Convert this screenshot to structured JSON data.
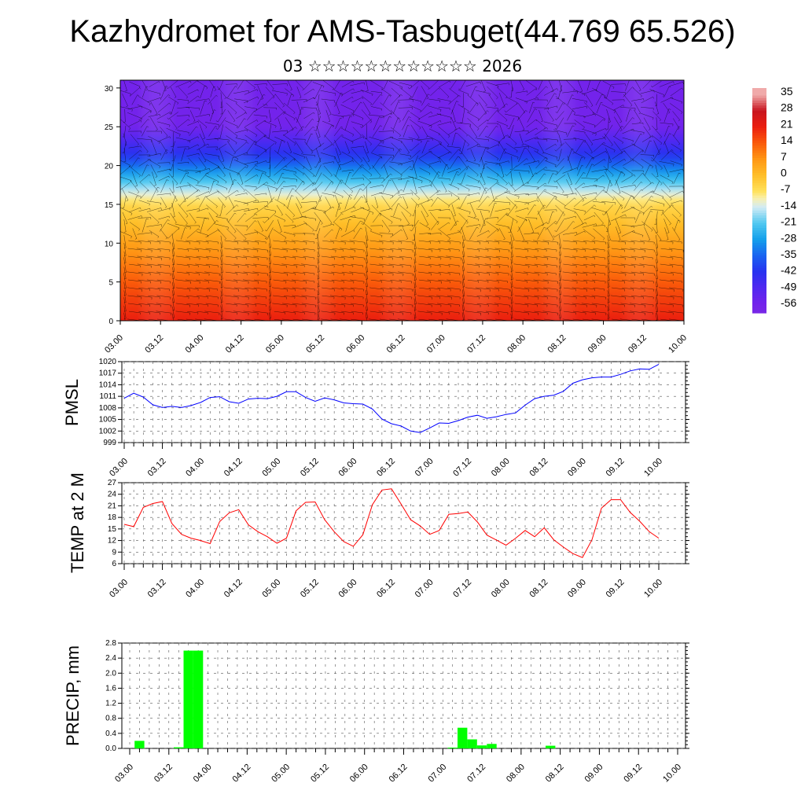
{
  "header": {
    "title": "Kazhydromet for AMS-Tasbuget(44.769 65.526)",
    "subtitle": "03 ☆☆☆☆☆☆☆☆☆☆☆☆ 2026"
  },
  "colorbar": {
    "labels": [
      "35",
      "28",
      "21",
      "14",
      "7",
      "0",
      "-7",
      "-14",
      "-21",
      "-28",
      "-35",
      "-42",
      "-49",
      "-56"
    ]
  },
  "chart_data": [
    {
      "id": "cross_section",
      "type": "heatmap",
      "title": "",
      "xlabel": "",
      "ylabel": "",
      "x_ticks": [
        "03.00",
        "03.12",
        "04.00",
        "04.12",
        "05.00",
        "05.12",
        "06.00",
        "06.12",
        "07.00",
        "07.12",
        "08.00",
        "08.12",
        "09.00",
        "09.12",
        "10.00"
      ],
      "y_ticks": [
        0,
        5,
        10,
        15,
        20,
        25,
        30
      ],
      "ylim": [
        0,
        31
      ],
      "colorscale_range": [
        -56,
        35
      ],
      "overlay": "wind barbs",
      "temperature_profile": [
        {
          "height": 0,
          "value": 21
        },
        {
          "height": 5,
          "value": 14
        },
        {
          "height": 10,
          "value": 5
        },
        {
          "height": 15,
          "value": -5
        },
        {
          "height": 18,
          "value": -22
        },
        {
          "height": 21,
          "value": -40
        },
        {
          "height": 25,
          "value": -56
        },
        {
          "height": 31,
          "value": -56
        }
      ]
    },
    {
      "id": "pmsl",
      "type": "line",
      "ylabel": "PMSL",
      "ylim": [
        999,
        1020
      ],
      "y_ticks": [
        999,
        1002,
        1005,
        1008,
        1011,
        1014,
        1017,
        1020
      ],
      "x_ticks": [
        "03.00",
        "03.12",
        "04.00",
        "04.12",
        "05.00",
        "05.12",
        "06.00",
        "06.12",
        "07.00",
        "07.12",
        "08.00",
        "08.12",
        "09.00",
        "09.12",
        "10.00"
      ],
      "color": "#0000ff",
      "x": [
        0,
        0.125,
        0.25,
        0.375,
        0.5,
        0.625,
        0.75,
        0.875,
        1,
        1.125,
        1.25,
        1.375,
        1.5,
        1.625,
        1.75,
        1.875,
        2,
        2.125,
        2.25,
        2.375,
        2.5,
        2.625,
        2.75,
        2.875,
        3,
        3.125,
        3.25,
        3.375,
        3.5,
        3.625,
        3.75,
        3.875,
        4,
        4.125,
        4.25,
        4.375,
        4.5,
        4.625,
        4.75,
        4.875,
        5,
        5.125,
        5.25,
        5.375,
        5.5,
        5.625,
        5.75,
        5.875,
        6,
        6.125,
        6.25,
        6.375,
        6.5,
        6.625,
        6.75,
        6.875,
        7
      ],
      "values": [
        1010.5,
        1011.8,
        1010.8,
        1008.8,
        1008.1,
        1008.4,
        1008.1,
        1008.6,
        1009.4,
        1010.7,
        1010.9,
        1009.6,
        1009.2,
        1010.3,
        1010.5,
        1010.4,
        1011.0,
        1012.2,
        1012.2,
        1010.7,
        1009.7,
        1010.6,
        1010.1,
        1009.3,
        1009.1,
        1009.0,
        1007.7,
        1005.1,
        1003.9,
        1003.3,
        1002.0,
        1001.6,
        1002.8,
        1004.1,
        1004.0,
        1004.7,
        1005.6,
        1006.1,
        1005.3,
        1005.7,
        1006.3,
        1006.7,
        1008.7,
        1010.4,
        1011.0,
        1011.3,
        1012.3,
        1014.4,
        1015.3,
        1015.8,
        1016.0,
        1016.0,
        1016.7,
        1017.6,
        1018.1,
        1018.0,
        1019.3
      ]
    },
    {
      "id": "temp2m",
      "type": "line",
      "ylabel": "TEMP at 2 M",
      "ylim": [
        6,
        27
      ],
      "y_ticks": [
        6,
        9,
        12,
        15,
        18,
        21,
        24,
        27
      ],
      "x_ticks": [
        "03.00",
        "03.12",
        "04.00",
        "04.12",
        "05.00",
        "05.12",
        "06.00",
        "06.12",
        "07.00",
        "07.12",
        "08.00",
        "08.12",
        "09.00",
        "09.12",
        "10.00"
      ],
      "color": "#ff0000",
      "x": [
        0,
        0.125,
        0.25,
        0.375,
        0.5,
        0.625,
        0.75,
        0.875,
        1,
        1.125,
        1.25,
        1.375,
        1.5,
        1.625,
        1.75,
        1.875,
        2,
        2.125,
        2.25,
        2.375,
        2.5,
        2.625,
        2.75,
        2.875,
        3,
        3.125,
        3.25,
        3.375,
        3.5,
        3.625,
        3.75,
        3.875,
        4,
        4.125,
        4.25,
        4.375,
        4.5,
        4.625,
        4.75,
        4.875,
        5,
        5.125,
        5.25,
        5.375,
        5.5,
        5.625,
        5.75,
        5.875,
        6,
        6.125,
        6.25,
        6.375,
        6.5,
        6.625,
        6.75,
        6.875,
        7
      ],
      "values": [
        16.2,
        15.6,
        20.6,
        21.6,
        22.1,
        16.4,
        13.6,
        12.6,
        12.0,
        11.2,
        16.9,
        19.2,
        20.0,
        16.1,
        14.3,
        13.0,
        11.3,
        12.6,
        19.7,
        21.9,
        22.0,
        17.4,
        14.3,
        11.7,
        10.5,
        13.5,
        21.3,
        25.1,
        25.4,
        21.5,
        17.4,
        15.8,
        13.6,
        14.6,
        18.8,
        19.0,
        19.4,
        16.8,
        13.4,
        12.1,
        10.8,
        12.6,
        14.6,
        13.0,
        15.3,
        12.2,
        10.3,
        8.6,
        7.6,
        12.2,
        20.4,
        22.6,
        22.6,
        19.3,
        17.0,
        14.3,
        12.6
      ]
    },
    {
      "id": "precip",
      "type": "bar",
      "ylabel": "PRECIP, mm",
      "ylim": [
        0,
        2.8
      ],
      "y_ticks": [
        "0.0",
        "0.4",
        "0.8",
        "1.2",
        "1.6",
        "2.0",
        "2.4",
        "2.8"
      ],
      "x_ticks": [
        "03.00",
        "03.12",
        "04.00",
        "04.12",
        "05.00",
        "05.12",
        "06.00",
        "06.12",
        "07.00",
        "07.12",
        "08.00",
        "08.12",
        "09.00",
        "09.12",
        "10.00"
      ],
      "color": "#00ff00",
      "bars": [
        {
          "x": 0.125,
          "value": 0.2
        },
        {
          "x": 0.625,
          "value": 0.03
        },
        {
          "x": 0.75,
          "value": 2.6
        },
        {
          "x": 0.875,
          "value": 2.6
        },
        {
          "x": 4.125,
          "value": 0.02
        },
        {
          "x": 4.25,
          "value": 0.55
        },
        {
          "x": 4.375,
          "value": 0.24
        },
        {
          "x": 4.5,
          "value": 0.08
        },
        {
          "x": 4.625,
          "value": 0.12
        },
        {
          "x": 5.375,
          "value": 0.07
        }
      ]
    }
  ]
}
